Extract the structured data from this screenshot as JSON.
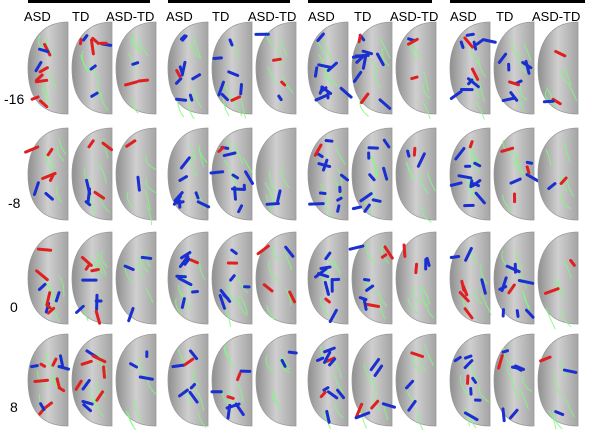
{
  "panels": [
    {
      "columns": [
        "ASD",
        "TD",
        "ASD-TD"
      ]
    },
    {
      "columns": [
        "ASD",
        "TD",
        "ASD-TD"
      ]
    },
    {
      "columns": [
        "ASD",
        "TD",
        "ASD-TD"
      ]
    },
    {
      "columns": [
        "ASD",
        "TD",
        "ASD-TD"
      ]
    }
  ],
  "rows": [
    "-16",
    "-8",
    "0",
    "8"
  ],
  "colors": {
    "background": "#ffffff",
    "brain_fill": "#c9c9c9",
    "brain_edge": "#9a9a9a",
    "tract_green": "#7cfc7c",
    "positive": "#e02020",
    "negative": "#1a2fd0"
  }
}
